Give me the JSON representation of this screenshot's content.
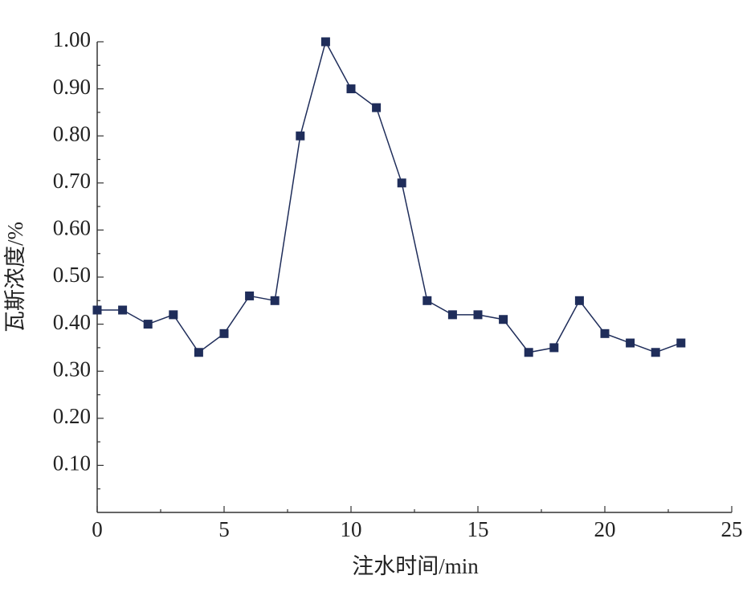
{
  "chart_data": {
    "type": "line",
    "x_label": "注水时间/min",
    "y_label": "瓦斯浓度/%",
    "x": [
      0,
      1,
      2,
      3,
      4,
      5,
      6,
      7,
      8,
      9,
      10,
      11,
      12,
      13,
      14,
      15,
      16,
      17,
      18,
      19,
      20,
      21,
      22,
      23
    ],
    "series": [
      {
        "color": "#1f2d5a",
        "values": [
          0.43,
          0.43,
          0.4,
          0.42,
          0.34,
          0.38,
          0.46,
          0.45,
          0.8,
          1.0,
          0.9,
          0.86,
          0.7,
          0.45,
          0.42,
          0.42,
          0.41,
          0.34,
          0.35,
          0.45,
          0.38,
          0.36,
          0.34,
          0.36
        ]
      }
    ],
    "xlim": [
      0,
      25
    ],
    "xticks": [
      0,
      5,
      10,
      15,
      20,
      25
    ],
    "ylim": [
      0,
      1.0
    ],
    "yticks": [
      {
        "value": 0.1,
        "label": "0.10"
      },
      {
        "value": 0.2,
        "label": "0.20"
      },
      {
        "value": 0.3,
        "label": "0.30"
      },
      {
        "value": 0.4,
        "label": "0.40"
      },
      {
        "value": 0.5,
        "label": "0.50"
      },
      {
        "value": 0.6,
        "label": "0.60"
      },
      {
        "value": 0.7,
        "label": "0.70"
      },
      {
        "value": 0.8,
        "label": "0.80"
      },
      {
        "value": 0.9,
        "label": "0.90"
      },
      {
        "value": 1.0,
        "label": "1.00"
      }
    ]
  }
}
